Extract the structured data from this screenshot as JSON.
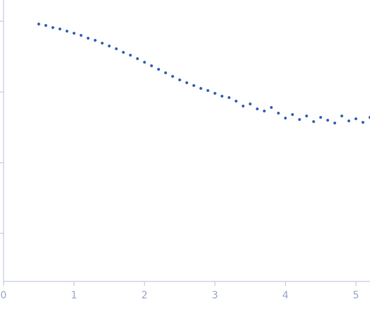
{
  "chart_data": {
    "type": "scatter",
    "color": "#3a63b8",
    "x": [
      0.5,
      0.6,
      0.7,
      0.8,
      0.9,
      1.0,
      1.1,
      1.2,
      1.3,
      1.4,
      1.5,
      1.6,
      1.7,
      1.8,
      1.9,
      2.0,
      2.1,
      2.2,
      2.3,
      2.4,
      2.5,
      2.6,
      2.7,
      2.8,
      2.9,
      3.0,
      3.1,
      3.2,
      3.3,
      3.4,
      3.5,
      3.6,
      3.7,
      3.8,
      3.9,
      4.0,
      4.1,
      4.2,
      4.3,
      4.4,
      4.5,
      4.6,
      4.7,
      4.8,
      4.9,
      5.0,
      5.1,
      5.2
    ],
    "values": [
      3.96,
      3.94,
      3.91,
      3.89,
      3.86,
      3.83,
      3.8,
      3.76,
      3.73,
      3.69,
      3.65,
      3.61,
      3.56,
      3.52,
      3.47,
      3.42,
      3.37,
      3.32,
      3.27,
      3.22,
      3.17,
      3.13,
      3.09,
      3.05,
      3.02,
      2.98,
      2.94,
      2.92,
      2.87,
      2.8,
      2.83,
      2.76,
      2.73,
      2.78,
      2.7,
      2.63,
      2.68,
      2.61,
      2.66,
      2.58,
      2.64,
      2.6,
      2.56,
      2.66,
      2.59,
      2.62,
      2.57,
      2.64
    ],
    "xlim": [
      0,
      5.2
    ],
    "xticks": [
      0,
      1,
      2,
      3,
      4,
      5
    ],
    "ylim": [
      0.3,
      4.3
    ],
    "yticks": [
      1,
      2,
      3,
      4
    ]
  }
}
